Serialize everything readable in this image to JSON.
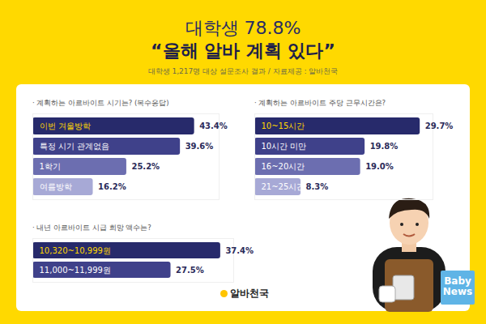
{
  "header": {
    "title": "대학생 78.8%",
    "subtitle": "“올해 알바 계획 있다”",
    "source": "대학생 1,217명 대상 설문조사 결과 / 자료제공 : 알바천국"
  },
  "chart_data": [
    {
      "type": "bar",
      "orientation": "horizontal",
      "title": "· 계획하는 아르바이트 시기는? (복수응답)",
      "categories": [
        "이번 겨울방학",
        "특정 시기 관계없음",
        "1학기",
        "여름방학"
      ],
      "values": [
        43.4,
        39.6,
        25.2,
        16.2
      ],
      "value_labels": [
        "43.4%",
        "39.6%",
        "25.2%",
        "16.2%"
      ],
      "colors": [
        "#272a6b",
        "#3f418a",
        "#6c6eb0",
        "#a7a9d6"
      ],
      "xlim": [
        0,
        50
      ],
      "tick_labels": false,
      "data_labels": true
    },
    {
      "type": "bar",
      "orientation": "horizontal",
      "title": "· 계획하는 아르바이트 주당 근무시간은?",
      "categories": [
        "10~15시간",
        "10시간 미만",
        "16~20시간",
        "21~25시간"
      ],
      "values": [
        29.7,
        19.8,
        19.0,
        8.3
      ],
      "value_labels": [
        "29.7%",
        "19.8%",
        "19.0%",
        "8.3%"
      ],
      "colors": [
        "#272a6b",
        "#3f418a",
        "#6c6eb0",
        "#a7a9d6"
      ],
      "xlim": [
        0,
        32
      ],
      "tick_labels": false,
      "data_labels": true
    },
    {
      "type": "bar",
      "orientation": "horizontal",
      "title": "· 내년 아르바이트 시급 희망 액수는?",
      "categories": [
        "10,320~10,999원",
        "11,000~11,999원"
      ],
      "values": [
        37.4,
        27.5
      ],
      "value_labels": [
        "37.4%",
        "27.5%"
      ],
      "colors": [
        "#272a6b",
        "#3f418a"
      ],
      "xlim": [
        0,
        40
      ],
      "tick_labels": false,
      "data_labels": true
    }
  ],
  "footer": {
    "logo": "알바천국",
    "watermark": "Baby News"
  }
}
